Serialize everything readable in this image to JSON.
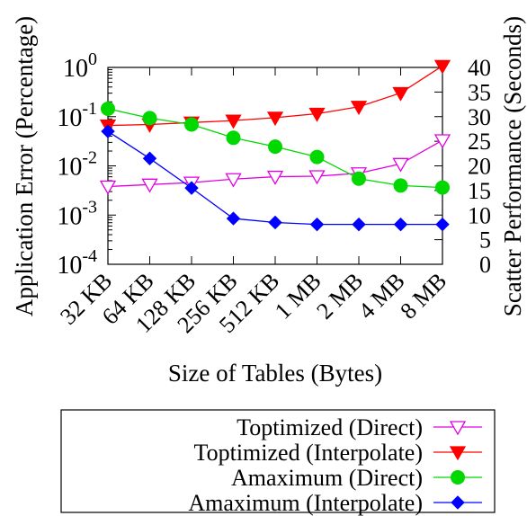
{
  "chart_data": {
    "type": "line",
    "xlabel": "Size of Tables (Bytes)",
    "ylabel_left": "Application Error (Percentage)",
    "ylabel_right": "Scatter Performance (Seconds)",
    "categories": [
      "32 KB",
      "64 KB",
      "128 KB",
      "256 KB",
      "512 KB",
      "1 MB",
      "2 MB",
      "4 MB",
      "8 MB"
    ],
    "y_left": {
      "scale": "log",
      "range": [
        0.0001,
        1
      ],
      "ticks": [
        {
          "value": 1,
          "base": "10",
          "exp": "0"
        },
        {
          "value": 0.1,
          "base": "10",
          "exp": "-1"
        },
        {
          "value": 0.01,
          "base": "10",
          "exp": "-2"
        },
        {
          "value": 0.001,
          "base": "10",
          "exp": "-3"
        },
        {
          "value": 0.0001,
          "base": "10",
          "exp": "-4"
        }
      ]
    },
    "y_right": {
      "scale": "linear",
      "range": [
        0,
        40
      ],
      "ticks": [
        "0",
        "5",
        "10",
        "15",
        "20",
        "25",
        "30",
        "35",
        "40"
      ]
    },
    "legend_position": "below",
    "series": [
      {
        "name": "Toptimized (Direct)",
        "color": "#e100e1",
        "marker": "triangle-down-open",
        "axis": "right",
        "values": [
          15.8,
          16.2,
          16.6,
          17.3,
          17.8,
          17.9,
          18.5,
          20.4,
          25.2
        ]
      },
      {
        "name": "Toptimized (Interpolate)",
        "color": "#ff0000",
        "marker": "triangle-down-filled",
        "axis": "right",
        "values": [
          28.2,
          28.4,
          28.8,
          29.2,
          29.8,
          30.6,
          32.0,
          34.8,
          40.3
        ]
      },
      {
        "name": "Amaximum (Direct)",
        "color": "#00d800",
        "marker": "circle-filled",
        "axis": "right",
        "values": [
          31.6,
          29.7,
          28.4,
          25.7,
          23.9,
          21.8,
          17.4,
          16.0,
          15.6
        ]
      },
      {
        "name": "Amaximum (Interpolate)",
        "color": "#0000ff",
        "marker": "diamond-filled",
        "axis": "right",
        "values": [
          27.0,
          21.5,
          15.5,
          9.3,
          8.5,
          8.1,
          8.1,
          8.1,
          8.1
        ]
      }
    ]
  }
}
